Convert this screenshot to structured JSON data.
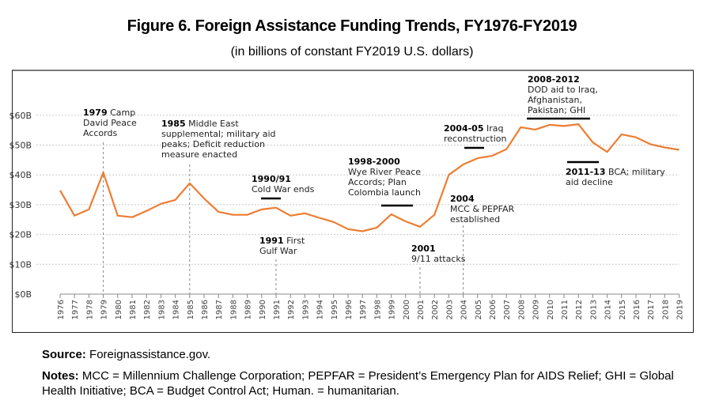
{
  "chart_data": {
    "type": "line",
    "title": "Figure 6. Foreign Assistance Funding Trends, FY1976-FY2019",
    "subtitle": "(in billions of constant FY2019 U.S. dollars)",
    "xlabel": "",
    "ylabel": "",
    "ylim": [
      0,
      60
    ],
    "yticks": [
      0,
      10,
      20,
      30,
      40,
      50,
      60
    ],
    "ytick_labels": [
      "$0B",
      "$10B",
      "$20B",
      "$30B",
      "$40B",
      "$50B",
      "$60B"
    ],
    "grid": true,
    "legend": "none",
    "line_color": "#ED7D31",
    "categories": [
      "1976",
      "1977",
      "1978",
      "1979",
      "1980",
      "1981",
      "1982",
      "1983",
      "1984",
      "1985",
      "1986",
      "1987",
      "1988",
      "1989",
      "1990",
      "1991",
      "1992",
      "1993",
      "1994",
      "1995",
      "1996",
      "1997",
      "1998",
      "1999",
      "2000",
      "2001",
      "2002",
      "2003",
      "2004",
      "2005",
      "2006",
      "2007",
      "2008",
      "2009",
      "2010",
      "2011",
      "2012",
      "2013",
      "2014",
      "2015",
      "2016",
      "2017",
      "2018",
      "2019"
    ],
    "series": [
      {
        "name": "Foreign assistance funding",
        "values": [
          34.8,
          26.3,
          28.4,
          40.8,
          26.3,
          25.8,
          27.9,
          30.3,
          31.6,
          37.2,
          32.1,
          27.6,
          26.6,
          26.6,
          28.4,
          29.0,
          26.3,
          27.1,
          25.6,
          24.2,
          21.8,
          21.1,
          22.3,
          26.8,
          24.4,
          22.6,
          26.6,
          40.0,
          43.5,
          45.6,
          46.4,
          48.6,
          56.0,
          55.2,
          56.8,
          56.4,
          57.0,
          50.9,
          47.7,
          53.6,
          52.6,
          50.3,
          49.2,
          48.4
        ]
      }
    ],
    "annotations": [
      {
        "bold": "1979",
        "lines": [
          " Camp",
          "David Peace",
          "Accords"
        ],
        "marker": "vline",
        "year": 1979
      },
      {
        "bold": "1985",
        "lines": [
          " Middle East",
          "supplemental; military aid",
          "peaks; Deficit reduction",
          "measure enacted"
        ],
        "marker": "vline",
        "year": 1985
      },
      {
        "bold": "1990/91",
        "lines": [
          "",
          "Cold War ends"
        ],
        "marker": "bar",
        "from": 1990,
        "to": 1991
      },
      {
        "bold": "1991",
        "lines": [
          " First",
          "Gulf War"
        ],
        "marker": "vline",
        "year": 1991
      },
      {
        "bold": "1998-2000",
        "lines": [
          "",
          "Wye River Peace",
          "Accords; Plan",
          "Colombia launch"
        ],
        "marker": "bar",
        "from": 1998,
        "to": 2000
      },
      {
        "bold": "2001",
        "lines": [
          "",
          "9/11 attacks"
        ],
        "marker": "vline",
        "year": 2001
      },
      {
        "bold": "2004",
        "lines": [
          "",
          "MCC & PEPFAR",
          "established"
        ],
        "marker": "vline",
        "year": 2004
      },
      {
        "bold": "2004-05",
        "lines": [
          " Iraq",
          "reconstruction"
        ],
        "marker": "bar",
        "from": 2004,
        "to": 2005
      },
      {
        "bold": "2008-2012",
        "lines": [
          "",
          "DOD aid to Iraq,",
          "Afghanistan,",
          "Pakistan; GHI"
        ],
        "marker": "bar",
        "from": 2008,
        "to": 2012
      },
      {
        "bold": "2011-13",
        "lines": [
          " BCA; military",
          "aid decline"
        ],
        "marker": "bar",
        "from": 2011,
        "to": 2013
      }
    ]
  },
  "footer": {
    "source_label": "Source:",
    "source_text": " Foreignassistance.gov.",
    "notes_label": "Notes:",
    "notes_text": " MCC = Millennium Challenge Corporation; PEPFAR = President’s Emergency Plan for AIDS Relief; GHI = Global Health Initiative; BCA = Budget Control Act; Human. = humanitarian."
  }
}
